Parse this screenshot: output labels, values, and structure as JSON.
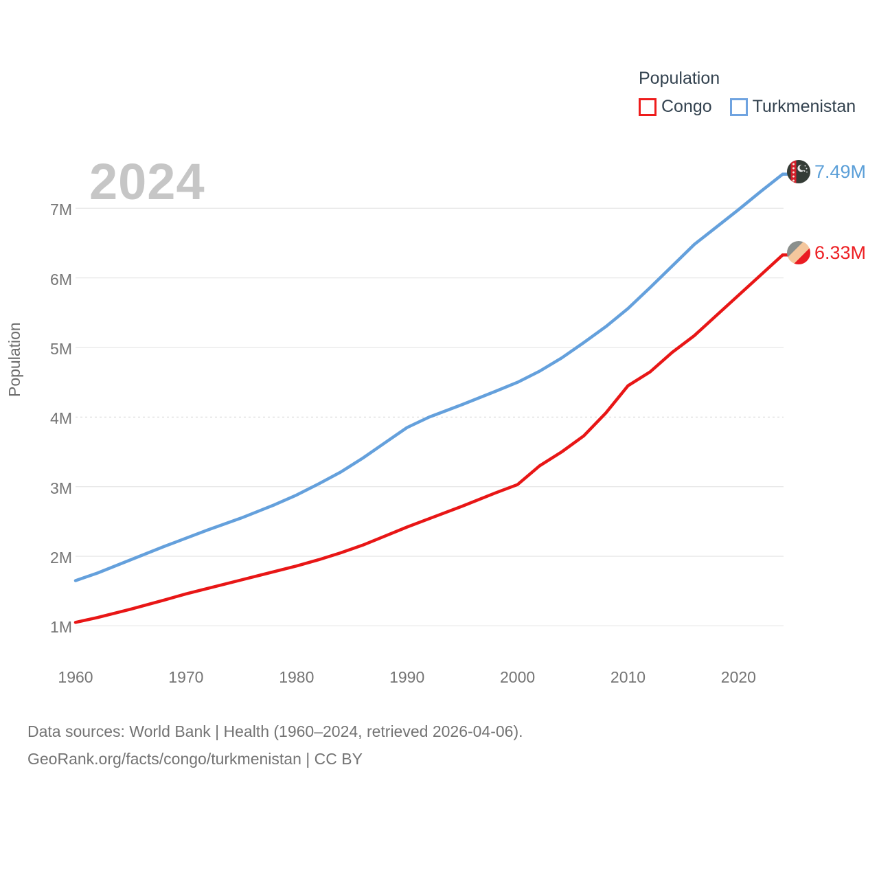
{
  "watermark": "2024",
  "legend": {
    "title": "Population",
    "items": [
      {
        "label": "Congo",
        "color": "#ee1c1c"
      },
      {
        "label": "Turkmenistan",
        "color": "#6fa3e0"
      }
    ]
  },
  "end_labels": {
    "turkmenistan": {
      "value": "7.49M",
      "color": "#5b9fd8",
      "flag": "turkmenistan-flag"
    },
    "congo": {
      "value": "6.33M",
      "color": "#ed2024",
      "flag": "congo-flag"
    }
  },
  "footer": {
    "line1": "Data sources: World Bank | Health (1960–2024, retrieved 2026-04-06).",
    "line2": "GeoRank.org/facts/congo/turkmenistan | CC BY"
  },
  "chart_data": {
    "type": "line",
    "title": "Population",
    "xlabel": "",
    "ylabel": "Population",
    "xlim": [
      1960,
      2024
    ],
    "ylim": [
      1000000,
      7600000
    ],
    "grid": true,
    "legend_position": "top-right",
    "unit": "people",
    "x_ticks": [
      1960,
      1970,
      1980,
      1990,
      2000,
      2010,
      2020
    ],
    "y_ticks": [
      {
        "value": 1,
        "label": "1M"
      },
      {
        "value": 2,
        "label": "2M"
      },
      {
        "value": 3,
        "label": "3M"
      },
      {
        "value": 4,
        "label": "4M"
      },
      {
        "value": 5,
        "label": "5M"
      },
      {
        "value": 6,
        "label": "6M"
      },
      {
        "value": 7,
        "label": "7M"
      }
    ],
    "x": [
      1960,
      1962,
      1965,
      1968,
      1970,
      1972,
      1975,
      1978,
      1980,
      1982,
      1984,
      1986,
      1988,
      1990,
      1992,
      1995,
      1998,
      2000,
      2002,
      2004,
      2006,
      2008,
      2010,
      2012,
      2014,
      2016,
      2018,
      2020,
      2022,
      2024
    ],
    "series": [
      {
        "name": "Turkmenistan",
        "color": "#64a0dc",
        "end_value_label": "7.49M",
        "values_millions": [
          1.65,
          1.76,
          1.95,
          2.14,
          2.26,
          2.38,
          2.55,
          2.74,
          2.88,
          3.04,
          3.21,
          3.41,
          3.63,
          3.85,
          4.0,
          4.18,
          4.37,
          4.5,
          4.66,
          4.85,
          5.07,
          5.3,
          5.56,
          5.86,
          6.17,
          6.48,
          6.73,
          6.98,
          7.24,
          7.49
        ]
      },
      {
        "name": "Congo",
        "color": "#e81616",
        "end_value_label": "6.33M",
        "values_millions": [
          1.05,
          1.12,
          1.24,
          1.37,
          1.46,
          1.54,
          1.66,
          1.78,
          1.86,
          1.95,
          2.05,
          2.16,
          2.29,
          2.42,
          2.54,
          2.72,
          2.91,
          3.03,
          3.3,
          3.5,
          3.73,
          4.06,
          4.45,
          4.65,
          4.93,
          5.17,
          5.46,
          5.75,
          6.04,
          6.33
        ]
      }
    ]
  }
}
